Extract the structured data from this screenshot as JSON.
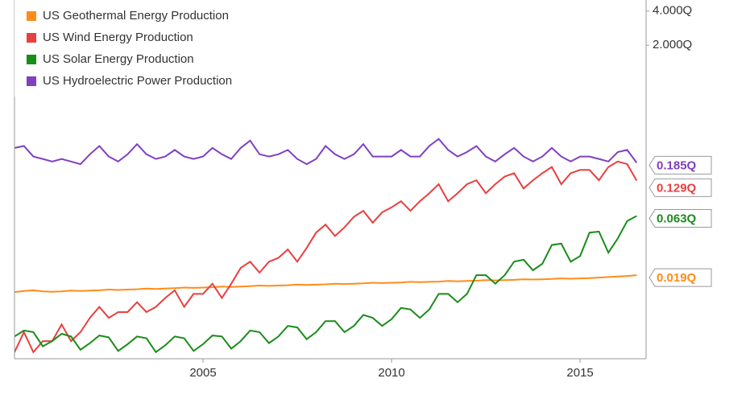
{
  "chart_data": {
    "type": "line",
    "log_y": true,
    "grid": false,
    "xlim": [
      2000,
      2016.75
    ],
    "xticks": [
      2005,
      2010,
      2015
    ],
    "ylim": [
      0.0035,
      5
    ],
    "yticks": [
      {
        "value": 2,
        "label": "2.000Q"
      },
      {
        "value": 4,
        "label": "4.000Q"
      }
    ],
    "x": [
      2000,
      2000.25,
      2000.5,
      2000.75,
      2001,
      2001.25,
      2001.5,
      2001.75,
      2002,
      2002.25,
      2002.5,
      2002.75,
      2003,
      2003.25,
      2003.5,
      2003.75,
      2004,
      2004.25,
      2004.5,
      2004.75,
      2005,
      2005.25,
      2005.5,
      2005.75,
      2006,
      2006.25,
      2006.5,
      2006.75,
      2007,
      2007.25,
      2007.5,
      2007.75,
      2008,
      2008.25,
      2008.5,
      2008.75,
      2009,
      2009.25,
      2009.5,
      2009.75,
      2010,
      2010.25,
      2010.5,
      2010.75,
      2011,
      2011.25,
      2011.5,
      2011.75,
      2012,
      2012.25,
      2012.5,
      2012.75,
      2013,
      2013.25,
      2013.5,
      2013.75,
      2014,
      2014.25,
      2014.5,
      2014.75,
      2015,
      2015.25,
      2015.5,
      2015.75,
      2016,
      2016.25,
      2016.5
    ],
    "series": [
      {
        "name": "US Geothermal Energy Production",
        "color": "#ff8c1a",
        "value_labels": [
          "0.019Q"
        ],
        "values": [
          0.0135,
          0.0138,
          0.014,
          0.0137,
          0.0136,
          0.0137,
          0.0139,
          0.0138,
          0.0139,
          0.014,
          0.0142,
          0.0141,
          0.0142,
          0.0143,
          0.0145,
          0.0144,
          0.0145,
          0.0146,
          0.0148,
          0.0147,
          0.0148,
          0.0149,
          0.0151,
          0.015,
          0.0151,
          0.0152,
          0.0154,
          0.0153,
          0.0154,
          0.0155,
          0.0157,
          0.0156,
          0.0157,
          0.0158,
          0.016,
          0.0159,
          0.016,
          0.0161,
          0.0163,
          0.0162,
          0.0163,
          0.0164,
          0.0166,
          0.0165,
          0.0166,
          0.0167,
          0.0169,
          0.0168,
          0.0169,
          0.017,
          0.0172,
          0.0171,
          0.0172,
          0.0173,
          0.0175,
          0.0174,
          0.0175,
          0.0176,
          0.0178,
          0.0177,
          0.0178,
          0.0179,
          0.0181,
          0.0183,
          0.0185,
          0.0187,
          0.019
        ]
      },
      {
        "name": "US Wind Energy Production",
        "color": "#e8403f",
        "value_labels": [
          "0.129Q"
        ],
        "values": [
          0.004,
          0.006,
          0.004,
          0.005,
          0.005,
          0.007,
          0.005,
          0.006,
          0.008,
          0.01,
          0.008,
          0.009,
          0.009,
          0.011,
          0.009,
          0.01,
          0.012,
          0.014,
          0.01,
          0.013,
          0.013,
          0.016,
          0.012,
          0.016,
          0.022,
          0.025,
          0.02,
          0.025,
          0.027,
          0.032,
          0.025,
          0.033,
          0.045,
          0.053,
          0.042,
          0.05,
          0.062,
          0.07,
          0.055,
          0.068,
          0.075,
          0.085,
          0.07,
          0.085,
          0.1,
          0.12,
          0.085,
          0.1,
          0.12,
          0.13,
          0.1,
          0.12,
          0.14,
          0.15,
          0.11,
          0.13,
          0.15,
          0.17,
          0.12,
          0.15,
          0.16,
          0.16,
          0.13,
          0.17,
          0.19,
          0.18,
          0.129
        ]
      },
      {
        "name": "US Solar Energy Production",
        "color": "#1a8c1a",
        "value_labels": [
          "0.063Q"
        ],
        "values": [
          0.0055,
          0.0062,
          0.006,
          0.0045,
          0.005,
          0.0058,
          0.0055,
          0.0042,
          0.0048,
          0.0056,
          0.0054,
          0.0041,
          0.0047,
          0.0055,
          0.0053,
          0.004,
          0.0046,
          0.0055,
          0.0053,
          0.0041,
          0.0047,
          0.0056,
          0.0055,
          0.0043,
          0.005,
          0.0062,
          0.006,
          0.0048,
          0.0055,
          0.0068,
          0.0066,
          0.0052,
          0.006,
          0.0075,
          0.0075,
          0.006,
          0.0068,
          0.0085,
          0.008,
          0.0068,
          0.0078,
          0.0098,
          0.0095,
          0.008,
          0.0095,
          0.013,
          0.013,
          0.011,
          0.013,
          0.019,
          0.019,
          0.016,
          0.019,
          0.025,
          0.026,
          0.021,
          0.024,
          0.035,
          0.036,
          0.025,
          0.028,
          0.045,
          0.046,
          0.03,
          0.04,
          0.057,
          0.063
        ]
      },
      {
        "name": "US Hydroelectric Power Production",
        "color": "#8040c0",
        "value_labels": [
          "0.185Q"
        ],
        "values": [
          0.25,
          0.26,
          0.21,
          0.2,
          0.19,
          0.2,
          0.19,
          0.18,
          0.22,
          0.26,
          0.21,
          0.19,
          0.22,
          0.27,
          0.22,
          0.2,
          0.21,
          0.24,
          0.21,
          0.2,
          0.21,
          0.25,
          0.22,
          0.2,
          0.25,
          0.29,
          0.22,
          0.21,
          0.22,
          0.24,
          0.2,
          0.18,
          0.2,
          0.26,
          0.22,
          0.2,
          0.22,
          0.27,
          0.21,
          0.21,
          0.21,
          0.24,
          0.21,
          0.21,
          0.26,
          0.3,
          0.24,
          0.21,
          0.23,
          0.26,
          0.21,
          0.19,
          0.22,
          0.25,
          0.21,
          0.19,
          0.21,
          0.25,
          0.21,
          0.19,
          0.21,
          0.21,
          0.2,
          0.19,
          0.23,
          0.24,
          0.185
        ]
      }
    ]
  }
}
